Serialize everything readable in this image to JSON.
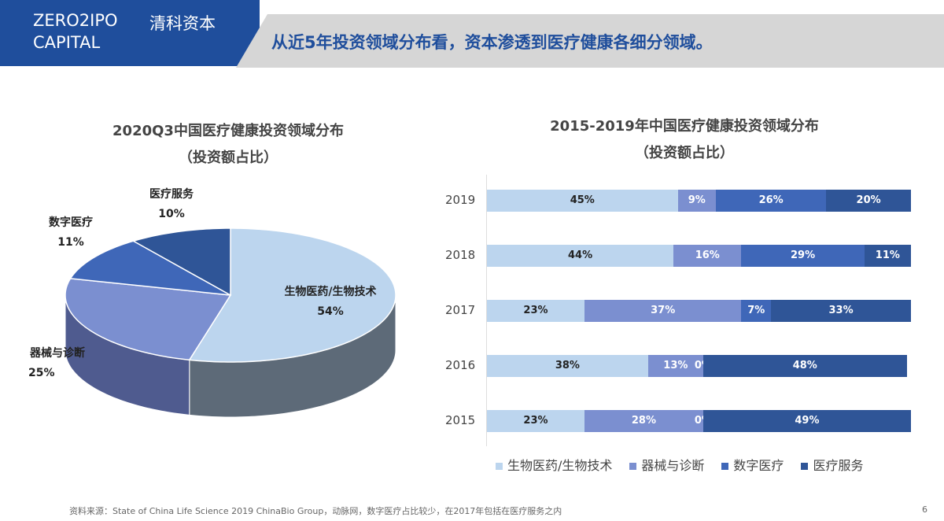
{
  "header": {
    "brand_en_1": "ZERO2IPO",
    "brand_en_2": "CAPITAL",
    "brand_cn": "清科资本",
    "headline": "从近5年投资领域分布看，资本渗透到医疗健康各细分领域。"
  },
  "chart_data": [
    {
      "type": "pie",
      "title": "2020Q3中国医疗健康投资领域分布",
      "subtitle": "（投资额占比）",
      "slices": [
        {
          "label": "生物医药/生物技术",
          "value": 54,
          "text": "54%"
        },
        {
          "label": "器械与诊断",
          "value": 25,
          "text": "25%"
        },
        {
          "label": "数字医疗",
          "value": 11,
          "text": "11%"
        },
        {
          "label": "医疗服务",
          "value": 10,
          "text": "10%"
        }
      ],
      "colors": [
        "#bcd5ee",
        "#7b8fd0",
        "#3f67b8",
        "#2f5597"
      ]
    },
    {
      "type": "bar",
      "stacked": true,
      "orientation": "horizontal",
      "title": "2015-2019年中国医疗健康投资领域分布",
      "subtitle": "（投资额占比）",
      "categories": [
        "2019",
        "2018",
        "2017",
        "2016",
        "2015"
      ],
      "series": [
        {
          "name": "生物医药/生物技术",
          "color": "#bcd5ee",
          "values": [
            45,
            44,
            23,
            38,
            23
          ]
        },
        {
          "name": "器械与诊断",
          "color": "#7b8fd0",
          "values": [
            9,
            16,
            37,
            13,
            28
          ]
        },
        {
          "name": "数字医疗",
          "color": "#3f67b8",
          "values": [
            26,
            29,
            7,
            0,
            0
          ]
        },
        {
          "name": "医疗服务",
          "color": "#2f5597",
          "values": [
            20,
            11,
            33,
            48,
            49
          ]
        }
      ],
      "legend": "bottom"
    }
  ],
  "footer": {
    "source": "资料来源：State of China Life Science 2019 ChinaBio Group，动脉网，数字医疗占比较少，在2017年包括在医疗服务之内",
    "page": "6"
  }
}
